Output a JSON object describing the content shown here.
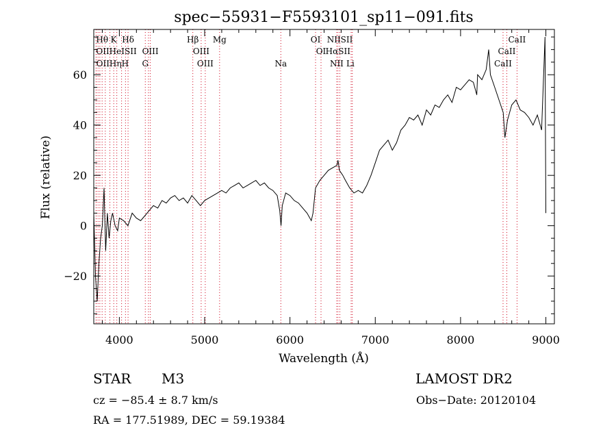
{
  "chart_data": {
    "type": "line",
    "title": "spec−55931−F5593101_sp11−091.fits",
    "xlabel": "Wavelength (Å)",
    "ylabel": "Flux (relative)",
    "xlim": [
      3700,
      9100
    ],
    "ylim": [
      -39,
      78
    ],
    "x_ticks": [
      4000,
      5000,
      6000,
      7000,
      8000,
      9000
    ],
    "y_ticks": [
      -20,
      0,
      20,
      40,
      60
    ],
    "y_tick_labels": [
      "−20",
      "0",
      "20",
      "40",
      "60"
    ],
    "grid": false,
    "series": [
      {
        "x": [
          3700,
          3720,
          3740,
          3760,
          3780,
          3800,
          3820,
          3840,
          3860,
          3880,
          3900,
          3920,
          3950,
          3980,
          4000,
          4050,
          4100,
          4150,
          4200,
          4250,
          4300,
          4350,
          4400,
          4450,
          4500,
          4550,
          4600,
          4650,
          4700,
          4750,
          4800,
          4850,
          4900,
          4950,
          5000,
          5050,
          5100,
          5150,
          5200,
          5250,
          5300,
          5350,
          5400,
          5450,
          5500,
          5550,
          5600,
          5650,
          5700,
          5750,
          5800,
          5850,
          5880,
          5895,
          5910,
          5950,
          6000,
          6050,
          6100,
          6150,
          6200,
          6250,
          6270,
          6300,
          6350,
          6400,
          6450,
          6500,
          6550,
          6563,
          6580,
          6620,
          6650,
          6700,
          6750,
          6800,
          6850,
          6900,
          6950,
          7000,
          7050,
          7100,
          7150,
          7200,
          7250,
          7300,
          7350,
          7400,
          7450,
          7500,
          7550,
          7600,
          7650,
          7700,
          7750,
          7800,
          7850,
          7900,
          7950,
          8000,
          8050,
          8100,
          8150,
          8190,
          8200,
          8250,
          8300,
          8330,
          8350,
          8400,
          8450,
          8500,
          8520,
          8550,
          8600,
          8650,
          8700,
          8750,
          8800,
          8850,
          8900,
          8950,
          8990,
          9000
        ],
        "y": [
          5,
          -20,
          -30,
          -15,
          -5,
          0,
          15,
          -10,
          5,
          -5,
          2,
          5,
          0,
          -2,
          3,
          2,
          0,
          5,
          3,
          2,
          4,
          6,
          8,
          7,
          10,
          9,
          11,
          12,
          10,
          11,
          9,
          12,
          10,
          8,
          10,
          11,
          12,
          13,
          14,
          13,
          15,
          16,
          17,
          15,
          16,
          17,
          18,
          16,
          17,
          15,
          14,
          12,
          6,
          0,
          8,
          13,
          12,
          10,
          9,
          7,
          5,
          2,
          5,
          15,
          18,
          20,
          22,
          23,
          24,
          26,
          22,
          20,
          18,
          15,
          13,
          14,
          13,
          16,
          20,
          25,
          30,
          32,
          34,
          30,
          33,
          38,
          40,
          43,
          42,
          44,
          40,
          46,
          44,
          48,
          47,
          50,
          52,
          49,
          55,
          54,
          56,
          58,
          57,
          52,
          60,
          58,
          62,
          70,
          60,
          55,
          50,
          45,
          35,
          42,
          48,
          50,
          46,
          45,
          43,
          40,
          44,
          38,
          75,
          5
        ]
      }
    ],
    "line_annotations": [
      {
        "label": "Hθ",
        "x": 3798,
        "row": 1
      },
      {
        "label": "K",
        "x": 3934,
        "row": 1
      },
      {
        "label": "Hδ",
        "x": 4102,
        "row": 1
      },
      {
        "label": "Hβ",
        "x": 4861,
        "row": 1
      },
      {
        "label": "Mg",
        "x": 5175,
        "row": 1
      },
      {
        "label": "OI",
        "x": 6300,
        "row": 1
      },
      {
        "label": "NIISII",
        "x": 6585,
        "row": 1
      },
      {
        "label": "CaII",
        "x": 8662,
        "row": 1
      },
      {
        "label": "OIIHeISII",
        "x": 3727,
        "row": 2
      },
      {
        "label": "OIII",
        "x": 4363,
        "row": 2
      },
      {
        "label": "OIII",
        "x": 4959,
        "row": 2
      },
      {
        "label": "OI",
        "x": 6364,
        "row": 2
      },
      {
        "label": "HαSII",
        "x": 6563,
        "row": 2
      },
      {
        "label": "CaII",
        "x": 8542,
        "row": 2
      },
      {
        "label": "OIIHηH",
        "x": 3729,
        "row": 3
      },
      {
        "label": "G",
        "x": 4304,
        "row": 3
      },
      {
        "label": "OIII",
        "x": 5007,
        "row": 3
      },
      {
        "label": "Na",
        "x": 5893,
        "row": 3
      },
      {
        "label": "NII",
        "x": 6548,
        "row": 3
      },
      {
        "label": "Li",
        "x": 6708,
        "row": 3
      },
      {
        "label": "CaII",
        "x": 8498,
        "row": 3
      }
    ],
    "line_markers_x": [
      3727,
      3729,
      3750,
      3771,
      3798,
      3835,
      3889,
      3934,
      3970,
      4026,
      4072,
      4102,
      4304,
      4341,
      4363,
      4861,
      4959,
      5007,
      5175,
      5893,
      6300,
      6364,
      6548,
      6563,
      6585,
      6717,
      6731,
      8498,
      8542,
      8662
    ]
  },
  "info": {
    "object_class": "STAR",
    "subclass": "M3",
    "survey": "LAMOST DR2",
    "redshift": "cz = −85.4 ± 8.7 km/s",
    "obs_date": "Obs−Date: 20120104",
    "coords": "RA = 177.51989, DEC =  59.19384"
  },
  "colors": {
    "spectrum": "#000000",
    "line_markers": "#d0021b",
    "background": "#ffffff"
  }
}
